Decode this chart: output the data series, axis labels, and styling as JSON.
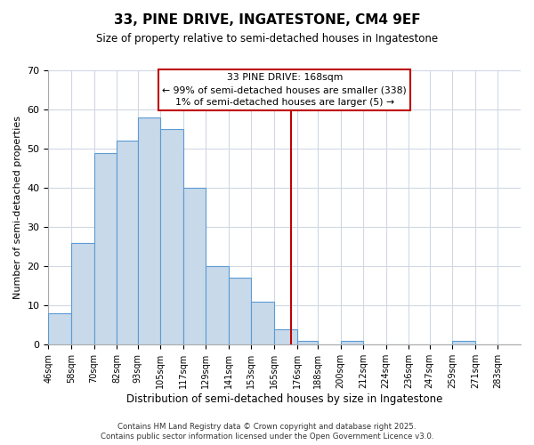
{
  "title": "33, PINE DRIVE, INGATESTONE, CM4 9EF",
  "subtitle": "Size of property relative to semi-detached houses in Ingatestone",
  "xlabel": "Distribution of semi-detached houses by size in Ingatestone",
  "ylabel": "Number of semi-detached properties",
  "bin_labels": [
    "46sqm",
    "58sqm",
    "70sqm",
    "82sqm",
    "93sqm",
    "105sqm",
    "117sqm",
    "129sqm",
    "141sqm",
    "153sqm",
    "165sqm",
    "176sqm",
    "188sqm",
    "200sqm",
    "212sqm",
    "224sqm",
    "236sqm",
    "247sqm",
    "259sqm",
    "271sqm",
    "283sqm"
  ],
  "bin_edges": [
    40,
    52,
    64,
    76,
    87,
    99,
    111,
    123,
    135,
    147,
    159,
    171,
    182,
    194,
    206,
    218,
    230,
    241,
    253,
    265,
    277,
    289
  ],
  "counts": [
    8,
    26,
    49,
    52,
    58,
    55,
    40,
    20,
    17,
    11,
    4,
    1,
    0,
    1,
    0,
    0,
    0,
    0,
    1,
    0,
    0
  ],
  "bar_color": "#c8d9ea",
  "bar_edge_color": "#5b9bd5",
  "vline_x": 168,
  "vline_color": "#c00000",
  "ylim": [
    0,
    70
  ],
  "yticks": [
    0,
    10,
    20,
    30,
    40,
    50,
    60,
    70
  ],
  "annotation_title": "33 PINE DRIVE: 168sqm",
  "annotation_line1": "← 99% of semi-detached houses are smaller (338)",
  "annotation_line2": "1% of semi-detached houses are larger (5) →",
  "annotation_box_color": "#c00000",
  "footer1": "Contains HM Land Registry data © Crown copyright and database right 2025.",
  "footer2": "Contains public sector information licensed under the Open Government Licence v3.0.",
  "background_color": "#ffffff",
  "grid_color": "#d0d8e4"
}
